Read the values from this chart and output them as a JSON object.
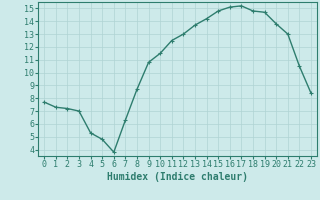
{
  "x": [
    0,
    1,
    2,
    3,
    4,
    5,
    6,
    7,
    8,
    9,
    10,
    11,
    12,
    13,
    14,
    15,
    16,
    17,
    18,
    19,
    20,
    21,
    22,
    23
  ],
  "y": [
    7.7,
    7.3,
    7.2,
    7.0,
    5.3,
    4.8,
    3.8,
    6.3,
    8.7,
    10.8,
    11.5,
    12.5,
    13.0,
    13.7,
    14.2,
    14.8,
    15.1,
    15.2,
    14.8,
    14.7,
    13.8,
    13.0,
    10.5,
    8.4
  ],
  "line_color": "#2e7d6e",
  "marker": "+",
  "marker_size": 3.5,
  "bg_color": "#cdeaea",
  "grid_color": "#b0d4d4",
  "xlabel": "Humidex (Indice chaleur)",
  "xlim": [
    -0.5,
    23.5
  ],
  "ylim": [
    3.5,
    15.5
  ],
  "yticks": [
    4,
    5,
    6,
    7,
    8,
    9,
    10,
    11,
    12,
    13,
    14,
    15
  ],
  "xticks": [
    0,
    1,
    2,
    3,
    4,
    5,
    6,
    7,
    8,
    9,
    10,
    11,
    12,
    13,
    14,
    15,
    16,
    17,
    18,
    19,
    20,
    21,
    22,
    23
  ],
  "tick_label_fontsize": 6,
  "xlabel_fontsize": 7,
  "line_width": 1.0,
  "marker_color": "#2e7d6e"
}
